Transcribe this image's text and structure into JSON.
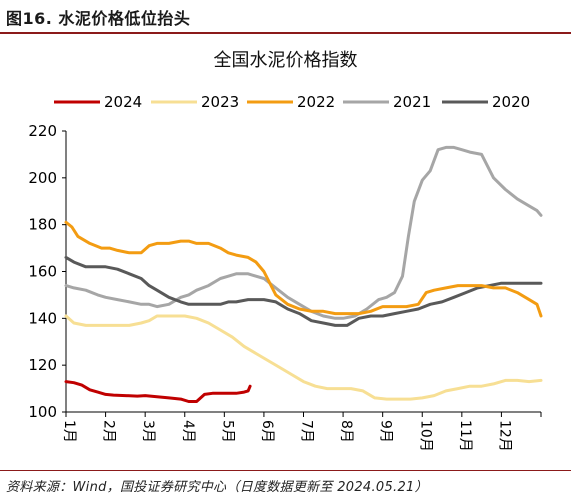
{
  "figure": {
    "label": "图16. 水泥价格低位抬头",
    "source": "资料来源：Wind，国投证券研究中心（日度数据更新至 2024.05.21）"
  },
  "chart_data": {
    "type": "line",
    "title": "全国水泥价格指数",
    "xlabel": "",
    "ylabel": "",
    "ylim": [
      100,
      220
    ],
    "yticks": [
      100,
      120,
      140,
      160,
      180,
      200,
      220
    ],
    "x_unit": "month",
    "xlim": [
      1,
      13
    ],
    "xtick_labels": [
      "1月",
      "2月",
      "3月",
      "4月",
      "5月",
      "6月",
      "7月",
      "8月",
      "9月",
      "10月",
      "11月",
      "12月"
    ],
    "grid": false,
    "legend_position": "top",
    "series": [
      {
        "name": "2024",
        "color": "#c00000",
        "x": [
          1.0,
          1.2,
          1.4,
          1.6,
          1.8,
          2.0,
          2.2,
          2.5,
          2.8,
          3.0,
          3.3,
          3.6,
          3.9,
          4.1,
          4.3,
          4.5,
          4.7,
          4.9,
          5.1,
          5.3,
          5.5,
          5.6,
          5.65
        ],
        "y": [
          113,
          112.5,
          111.5,
          109.5,
          108.5,
          107.5,
          107.2,
          107,
          106.8,
          107,
          106.5,
          106,
          105.5,
          104.5,
          104.5,
          107.5,
          108,
          108,
          108,
          108,
          108.5,
          109,
          111
        ]
      },
      {
        "name": "2023",
        "color": "#f7df94",
        "x": [
          1.0,
          1.2,
          1.5,
          1.8,
          2.0,
          2.3,
          2.6,
          2.9,
          3.1,
          3.3,
          3.5,
          3.8,
          4.0,
          4.3,
          4.6,
          4.9,
          5.2,
          5.5,
          5.8,
          6.1,
          6.4,
          6.7,
          7.0,
          7.3,
          7.6,
          7.9,
          8.2,
          8.5,
          8.8,
          9.1,
          9.4,
          9.7,
          10.0,
          10.3,
          10.6,
          10.9,
          11.2,
          11.5,
          11.8,
          12.1,
          12.4,
          12.7,
          13.0
        ],
        "y": [
          141,
          138,
          137,
          137,
          137,
          137,
          137,
          138,
          139,
          141,
          141,
          141,
          141,
          140,
          138,
          135,
          132,
          128,
          125,
          122,
          119,
          116,
          113,
          111,
          110,
          110,
          110,
          109,
          106,
          105.5,
          105.5,
          105.5,
          106,
          107,
          109,
          110,
          111,
          111,
          112,
          113.5,
          113.5,
          113,
          113.5
        ]
      },
      {
        "name": "2022",
        "color": "#f39c12",
        "x": [
          1.0,
          1.15,
          1.3,
          1.6,
          1.9,
          2.1,
          2.3,
          2.6,
          2.9,
          3.1,
          3.3,
          3.6,
          3.9,
          4.1,
          4.3,
          4.6,
          4.9,
          5.1,
          5.3,
          5.6,
          5.8,
          6.0,
          6.3,
          6.6,
          6.9,
          7.2,
          7.5,
          7.8,
          8.1,
          8.4,
          8.7,
          9.0,
          9.3,
          9.6,
          9.9,
          10.1,
          10.3,
          10.6,
          10.9,
          11.2,
          11.5,
          11.8,
          12.1,
          12.4,
          12.7,
          12.9,
          13.0
        ],
        "y": [
          181,
          179,
          175,
          172,
          170,
          170,
          169,
          168,
          168,
          171,
          172,
          172,
          173,
          173,
          172,
          172,
          170,
          168,
          167,
          166,
          164,
          160,
          150,
          146,
          144,
          143,
          143,
          142,
          142,
          142,
          143,
          145,
          145,
          145,
          146,
          151,
          152,
          153,
          154,
          154,
          154,
          153,
          153,
          151,
          148,
          146,
          141
        ]
      },
      {
        "name": "2021",
        "color": "#a6a6a6",
        "x": [
          1.0,
          1.2,
          1.5,
          1.8,
          2.0,
          2.3,
          2.6,
          2.9,
          3.1,
          3.3,
          3.6,
          3.9,
          4.1,
          4.3,
          4.6,
          4.9,
          5.1,
          5.3,
          5.6,
          5.8,
          6.0,
          6.3,
          6.6,
          6.9,
          7.2,
          7.5,
          7.8,
          8.0,
          8.3,
          8.6,
          8.9,
          9.1,
          9.3,
          9.5,
          9.65,
          9.8,
          10.0,
          10.2,
          10.4,
          10.6,
          10.8,
          11.0,
          11.2,
          11.5,
          11.8,
          12.1,
          12.4,
          12.7,
          12.9,
          13.0
        ],
        "y": [
          154,
          153,
          152,
          150,
          149,
          148,
          147,
          146,
          146,
          145,
          146,
          149,
          150,
          152,
          154,
          157,
          158,
          159,
          159,
          158,
          157,
          153,
          149,
          146,
          143,
          141,
          140,
          140,
          141,
          144,
          148,
          149,
          151,
          158,
          175,
          190,
          199,
          203,
          212,
          213,
          213,
          212,
          211,
          210,
          200,
          195,
          191,
          188,
          186,
          184
        ]
      },
      {
        "name": "2020",
        "color": "#595959",
        "x": [
          1.0,
          1.2,
          1.5,
          1.8,
          2.0,
          2.3,
          2.6,
          2.9,
          3.1,
          3.3,
          3.6,
          3.9,
          4.1,
          4.3,
          4.6,
          4.9,
          5.1,
          5.3,
          5.6,
          5.8,
          6.0,
          6.3,
          6.6,
          6.9,
          7.2,
          7.5,
          7.8,
          8.1,
          8.4,
          8.7,
          9.0,
          9.3,
          9.6,
          9.9,
          10.2,
          10.5,
          10.8,
          11.1,
          11.4,
          11.7,
          12.0,
          12.3,
          12.6,
          12.9,
          13.0
        ],
        "y": [
          166,
          164,
          162,
          162,
          162,
          161,
          159,
          157,
          154,
          152,
          149,
          147,
          146,
          146,
          146,
          146,
          147,
          147,
          148,
          148,
          148,
          147,
          144,
          142,
          139,
          138,
          137,
          137,
          140,
          141,
          141,
          142,
          143,
          144,
          146,
          147,
          149,
          151,
          153,
          154,
          155,
          155,
          155,
          155,
          155
        ]
      }
    ]
  }
}
